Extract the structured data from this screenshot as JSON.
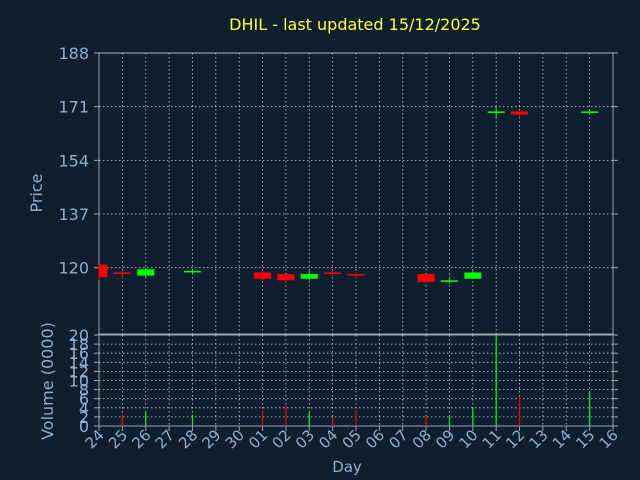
{
  "chart_data": {
    "type": "candlestick",
    "title": "DHIL - last updated 15/12/2025",
    "xlabel": "Day",
    "ylabel": "Price",
    "volume_label": "Volume (0000)",
    "x_ticks": [
      "24",
      "25",
      "26",
      "27",
      "28",
      "29",
      "30",
      "01",
      "02",
      "03",
      "04",
      "05",
      "06",
      "07",
      "08",
      "09",
      "10",
      "11",
      "12",
      "13",
      "14",
      "15",
      "16"
    ],
    "price_ticks": [
      120,
      137,
      154,
      171,
      188
    ],
    "price_range": [
      99,
      188
    ],
    "volume_ticks": [
      0,
      2,
      4,
      6,
      8,
      10,
      12,
      14,
      16,
      18,
      20
    ],
    "volume_range": [
      0,
      20
    ],
    "grid": true,
    "colors": {
      "up": "#00ff00",
      "down": "#ff0000",
      "title": "#ffff33",
      "axis_text": "#8faed0",
      "background": "#0f1f30"
    },
    "candles": [
      {
        "day": "24",
        "open": 121.0,
        "high": 121.0,
        "low": 116.0,
        "close": 117.0
      },
      {
        "day": "25",
        "open": 118.5,
        "high": 119.0,
        "low": 116.5,
        "close": 118.0
      },
      {
        "day": "26",
        "open": 117.5,
        "high": 120.0,
        "low": 117.0,
        "close": 119.5
      },
      {
        "day": "28",
        "open": 118.5,
        "high": 119.5,
        "low": 118.0,
        "close": 119.0
      },
      {
        "day": "01",
        "open": 118.5,
        "high": 119.0,
        "low": 116.0,
        "close": 116.5
      },
      {
        "day": "02",
        "open": 118.0,
        "high": 118.0,
        "low": 115.5,
        "close": 116.0
      },
      {
        "day": "03",
        "open": 116.5,
        "high": 119.0,
        "low": 116.0,
        "close": 118.0
      },
      {
        "day": "04",
        "open": 118.5,
        "high": 119.0,
        "low": 117.5,
        "close": 118.0
      },
      {
        "day": "05",
        "open": 118.0,
        "high": 118.5,
        "low": 116.5,
        "close": 117.5
      },
      {
        "day": "08",
        "open": 118.0,
        "high": 118.0,
        "low": 115.0,
        "close": 115.5
      },
      {
        "day": "09",
        "open": 115.5,
        "high": 117.0,
        "low": 115.0,
        "close": 116.0
      },
      {
        "day": "10",
        "open": 116.5,
        "high": 119.0,
        "low": 116.5,
        "close": 118.5
      },
      {
        "day": "11",
        "open": 169.0,
        "high": 171.0,
        "low": 167.0,
        "close": 169.5
      },
      {
        "day": "12",
        "open": 169.5,
        "high": 170.0,
        "low": 167.5,
        "close": 168.5
      },
      {
        "day": "15",
        "open": 169.0,
        "high": 170.0,
        "low": 168.5,
        "close": 169.5
      }
    ],
    "volume": [
      {
        "day": "25",
        "value": 2.5,
        "dir": "down"
      },
      {
        "day": "26",
        "value": 3.0,
        "dir": "up"
      },
      {
        "day": "28",
        "value": 2.5,
        "dir": "up"
      },
      {
        "day": "01",
        "value": 3.5,
        "dir": "down"
      },
      {
        "day": "02",
        "value": 4.5,
        "dir": "down"
      },
      {
        "day": "03",
        "value": 3.0,
        "dir": "up"
      },
      {
        "day": "04",
        "value": 2.0,
        "dir": "down"
      },
      {
        "day": "05",
        "value": 3.5,
        "dir": "down"
      },
      {
        "day": "08",
        "value": 2.0,
        "dir": "down"
      },
      {
        "day": "09",
        "value": 2.0,
        "dir": "up"
      },
      {
        "day": "10",
        "value": 4.0,
        "dir": "up"
      },
      {
        "day": "11",
        "value": 20.0,
        "dir": "up"
      },
      {
        "day": "12",
        "value": 6.5,
        "dir": "down"
      },
      {
        "day": "15",
        "value": 7.5,
        "dir": "up"
      }
    ]
  }
}
